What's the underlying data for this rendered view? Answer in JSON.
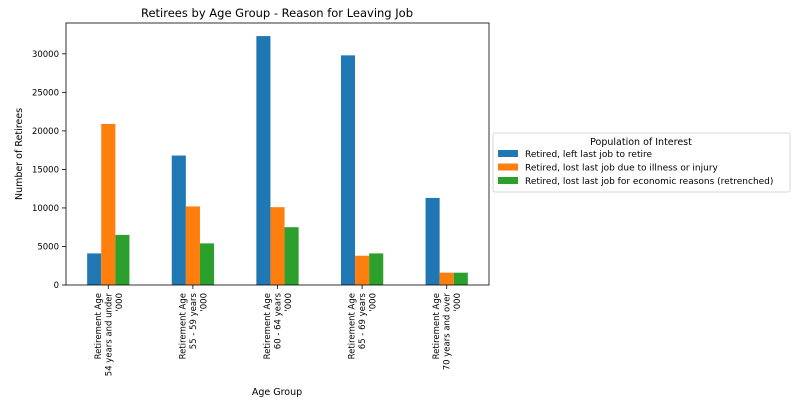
{
  "chart_data": {
    "type": "bar",
    "title": "Retirees by Age Group - Reason for Leaving Job",
    "xlabel": "Age Group",
    "ylabel": "Number of Retirees",
    "ylim": [
      0,
      34000
    ],
    "yticks": [
      0,
      5000,
      10000,
      15000,
      20000,
      25000,
      30000
    ],
    "categories": [
      [
        "Retirement Age",
        "54 years and under",
        "'000"
      ],
      [
        "Retirement Age",
        "55 - 59 years",
        "'000"
      ],
      [
        "Retirement Age",
        "60 - 64 years",
        "'000"
      ],
      [
        "Retirement Age",
        "65 - 69 years",
        "'000"
      ],
      [
        "Retirement Age",
        "70 years and over",
        "'000"
      ]
    ],
    "series": [
      {
        "name": "Retired, left last job to retire",
        "color": "#1f77b4",
        "values": [
          4100,
          16800,
          32300,
          29800,
          11300
        ]
      },
      {
        "name": "Retired, lost last job due to illness or injury",
        "color": "#ff7f0e",
        "values": [
          20900,
          10200,
          10100,
          3800,
          1600
        ]
      },
      {
        "name": "Retired, lost last job for economic reasons (retrenched)",
        "color": "#2ca02c",
        "values": [
          6500,
          5400,
          7500,
          4100,
          1600
        ]
      }
    ],
    "legend": {
      "title": "Population of Interest",
      "placement": "center-right outside"
    },
    "grid": false
  }
}
